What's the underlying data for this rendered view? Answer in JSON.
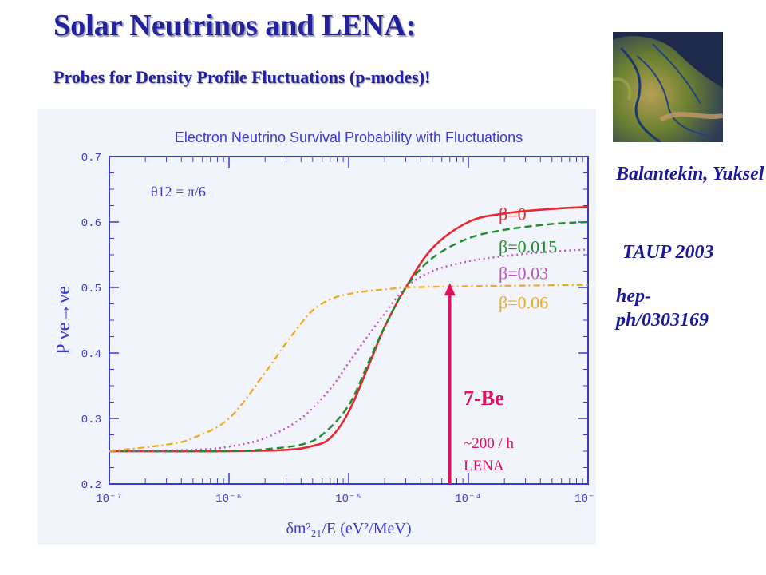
{
  "slide": {
    "title": "Solar Neutrinos and LENA:",
    "subtitle": "Probes for Density Profile Fluctuations (p-modes)!",
    "authors": "Balantekin, Yuksel",
    "conference": "TAUP 2003",
    "reference": "hep-ph/0303169",
    "annotation_label": "7-Be",
    "annotation_rate": "~200 / h",
    "annotation_detector": "LENA",
    "arrow_x": 7e-05
  },
  "chart_data": {
    "type": "line",
    "title": "Electron Neutrino Survival Probability with Fluctuations",
    "xlabel": "δm²₂₁/E  (eV²/MeV)",
    "ylabel": "P νe→νe",
    "annotation": "θ12 = π/6",
    "xscale": "log",
    "xlim": [
      1e-07,
      0.001
    ],
    "ylim": [
      0.2,
      0.7
    ],
    "x_ticks": [
      "10⁻⁷",
      "10⁻⁶",
      "10⁻⁵",
      "10⁻⁴",
      "10⁻³"
    ],
    "y_ticks": [
      "0.2",
      "0.3",
      "0.4",
      "0.5",
      "0.6",
      "0.7"
    ],
    "colors": {
      "frame": "#3a3ad0",
      "beta0": "#e8282e",
      "beta0015": "#1d8c2a",
      "beta003": "#c050c8",
      "beta006": "#f0a818",
      "arrow": "#e0105c"
    },
    "series": [
      {
        "name": "β=0",
        "style": "solid",
        "x": [
          1e-07,
          1e-06,
          3e-06,
          5e-06,
          7e-06,
          1e-05,
          1.5e-05,
          2e-05,
          3e-05,
          5e-05,
          0.0001,
          0.0002,
          0.0005,
          0.001
        ],
        "y": [
          0.25,
          0.25,
          0.252,
          0.258,
          0.27,
          0.31,
          0.385,
          0.44,
          0.5,
          0.56,
          0.6,
          0.613,
          0.62,
          0.623
        ]
      },
      {
        "name": "β=0.015",
        "style": "dashed",
        "x": [
          1e-07,
          1e-06,
          2e-06,
          4e-06,
          6e-06,
          1e-05,
          1.5e-05,
          2e-05,
          3e-05,
          5e-05,
          0.0001,
          0.0002,
          0.0005,
          0.001
        ],
        "y": [
          0.25,
          0.25,
          0.253,
          0.26,
          0.275,
          0.32,
          0.39,
          0.44,
          0.5,
          0.545,
          0.575,
          0.588,
          0.597,
          0.6
        ]
      },
      {
        "name": "β=0.03",
        "style": "dotted",
        "x": [
          1e-07,
          5e-07,
          1e-06,
          2e-06,
          4e-06,
          7e-06,
          1e-05,
          1.5e-05,
          2e-05,
          3e-05,
          5e-05,
          0.0001,
          0.0002,
          0.0005,
          0.001
        ],
        "y": [
          0.25,
          0.252,
          0.257,
          0.27,
          0.3,
          0.345,
          0.385,
          0.43,
          0.46,
          0.5,
          0.525,
          0.54,
          0.548,
          0.555,
          0.558
        ]
      },
      {
        "name": "β=0.06",
        "style": "dashdot",
        "x": [
          1e-07,
          3e-07,
          5e-07,
          1e-06,
          2e-06,
          3e-06,
          4e-06,
          5e-06,
          7e-06,
          1e-05,
          1.5e-05,
          2e-05,
          3e-05,
          5e-05,
          0.0001,
          0.0003,
          0.001
        ],
        "y": [
          0.25,
          0.26,
          0.27,
          0.3,
          0.37,
          0.415,
          0.445,
          0.465,
          0.482,
          0.49,
          0.495,
          0.497,
          0.5,
          0.501,
          0.502,
          0.503,
          0.504
        ]
      }
    ]
  }
}
